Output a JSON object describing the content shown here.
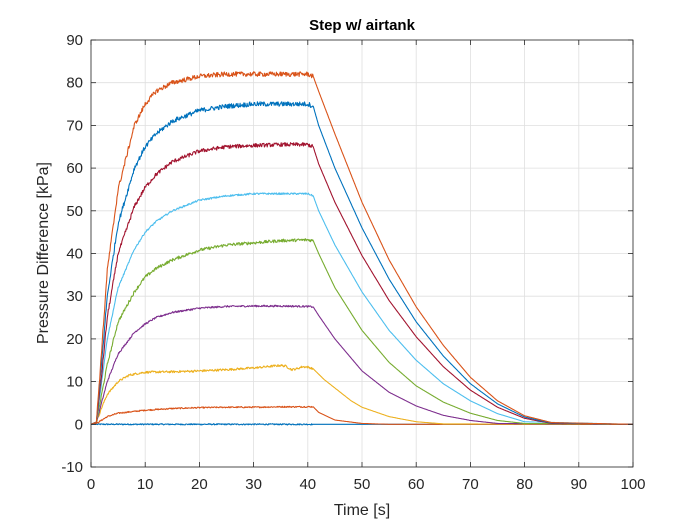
{
  "chart_data": {
    "type": "line",
    "title": "Step w/ airtank",
    "xlabel": "Time [s]",
    "ylabel": "Pressure Difference [kPa]",
    "xlim": [
      0,
      100
    ],
    "ylim": [
      -10,
      90
    ],
    "xticks": [
      0,
      10,
      20,
      30,
      40,
      50,
      60,
      70,
      80,
      90,
      100
    ],
    "yticks": [
      -10,
      0,
      10,
      20,
      30,
      40,
      50,
      60,
      70,
      80,
      90
    ],
    "grid": true,
    "legend": "none",
    "series": [
      {
        "color": "#0072BD",
        "noise": 0.15,
        "x": [
          0,
          1,
          41,
          100
        ],
        "y": [
          0,
          0,
          0,
          0
        ]
      },
      {
        "color": "#D95319",
        "noise": 0.15,
        "x": [
          0,
          1,
          3,
          5,
          10,
          15,
          20,
          25,
          30,
          35,
          40,
          41,
          42,
          45,
          50,
          55,
          100
        ],
        "y": [
          0,
          0.2,
          1.8,
          2.6,
          3.3,
          3.7,
          3.9,
          4.0,
          4.0,
          4.1,
          4.1,
          4.1,
          2.8,
          1.0,
          0.2,
          0,
          0
        ]
      },
      {
        "color": "#EDB120",
        "noise": 0.25,
        "x": [
          0,
          1,
          2,
          3,
          5,
          7,
          9,
          10,
          15,
          20,
          25,
          30,
          35,
          36,
          37,
          38,
          39,
          40,
          41,
          43,
          45,
          48,
          50,
          55,
          60,
          65,
          100
        ],
        "y": [
          0,
          0.5,
          4,
          7,
          10,
          11.5,
          12,
          12.2,
          12.3,
          12.5,
          12.8,
          13.2,
          13.8,
          13.6,
          12.8,
          13.0,
          13.5,
          13.4,
          13.0,
          10.5,
          8.5,
          5.5,
          4.0,
          1.8,
          0.6,
          0.1,
          0
        ]
      },
      {
        "color": "#7E2F8E",
        "noise": 0.2,
        "x": [
          0,
          1,
          3,
          5,
          8,
          10,
          12,
          15,
          20,
          25,
          30,
          35,
          40,
          41,
          42,
          45,
          50,
          55,
          60,
          65,
          70,
          75,
          100
        ],
        "y": [
          0,
          0.5,
          10,
          16.5,
          21.5,
          23.5,
          25,
          26.2,
          27.2,
          27.6,
          27.7,
          27.7,
          27.6,
          27.5,
          25.5,
          20,
          12.5,
          7.5,
          4.3,
          2.1,
          0.9,
          0.2,
          0
        ]
      },
      {
        "color": "#77AC30",
        "noise": 0.35,
        "x": [
          0,
          1,
          3,
          5,
          8,
          10,
          12,
          15,
          20,
          25,
          30,
          35,
          40,
          41,
          42,
          45,
          50,
          55,
          60,
          65,
          70,
          75,
          80,
          100
        ],
        "y": [
          0,
          0.5,
          14,
          24,
          31,
          34.5,
          36.5,
          38.5,
          40.8,
          42,
          42.5,
          43,
          43.2,
          43,
          40,
          32,
          22,
          14.5,
          9,
          5.2,
          2.6,
          0.9,
          0.2,
          0
        ]
      },
      {
        "color": "#4DBEEE",
        "noise": 0.2,
        "x": [
          0,
          1,
          3,
          5,
          8,
          10,
          12,
          15,
          20,
          25,
          30,
          35,
          40,
          41,
          42,
          45,
          50,
          55,
          60,
          65,
          70,
          75,
          80,
          100
        ],
        "y": [
          0,
          0.5,
          20,
          32,
          41,
          45,
          47.5,
          50,
          52.5,
          53.5,
          54,
          54,
          54,
          53.5,
          50,
          42,
          31,
          22,
          15,
          9.5,
          5.5,
          2.5,
          0.6,
          0
        ]
      },
      {
        "color": "#A2142F",
        "noise": 0.45,
        "x": [
          0,
          1,
          2,
          3,
          5,
          8,
          10,
          12,
          15,
          20,
          25,
          30,
          35,
          40,
          41,
          42,
          45,
          50,
          55,
          60,
          65,
          70,
          75,
          80,
          85,
          100
        ],
        "y": [
          0,
          0.5,
          12,
          25,
          40,
          51,
          55.5,
          58.5,
          61.5,
          64,
          65,
          65.3,
          65.5,
          65.5,
          65,
          61,
          52,
          39.5,
          29,
          20.5,
          13.5,
          8,
          4,
          1.4,
          0.2,
          0
        ]
      },
      {
        "color": "#0072BD",
        "noise": 0.55,
        "x": [
          0,
          1,
          2,
          3,
          5,
          8,
          10,
          12,
          15,
          20,
          25,
          30,
          35,
          40,
          41,
          42,
          45,
          50,
          55,
          60,
          65,
          70,
          75,
          80,
          85,
          100
        ],
        "y": [
          0,
          0.5,
          15,
          30,
          47,
          60,
          65,
          68,
          71,
          73.5,
          74.5,
          75,
          75,
          75,
          74.5,
          70,
          60,
          46,
          34,
          24,
          16,
          9.5,
          4.8,
          1.7,
          0.3,
          0
        ]
      },
      {
        "color": "#D95319",
        "noise": 0.55,
        "x": [
          0,
          1,
          2,
          3,
          5,
          8,
          10,
          12,
          15,
          20,
          25,
          30,
          35,
          40,
          41,
          42,
          45,
          50,
          55,
          60,
          65,
          70,
          75,
          80,
          85,
          100
        ],
        "y": [
          0,
          0.5,
          18,
          36,
          55,
          70,
          75,
          78,
          80,
          81.5,
          82,
          82,
          82,
          82,
          81.5,
          78,
          68,
          52,
          38.5,
          27.5,
          18.5,
          11,
          5.5,
          2,
          0.4,
          0
        ]
      }
    ]
  }
}
